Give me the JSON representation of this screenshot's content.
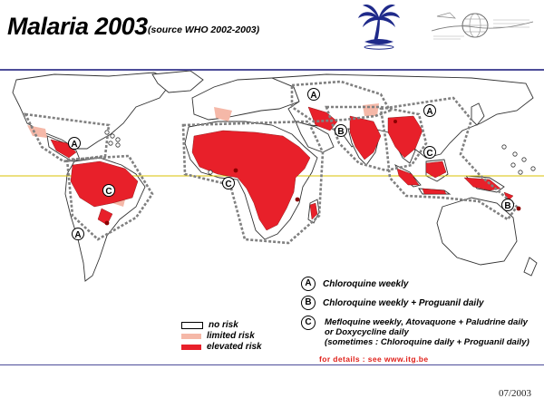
{
  "slide": {
    "title": "Malaria 2003",
    "subtitle": "(source WHO 2002-2003)",
    "date": "07/2003",
    "details_note": "for details : see www.itg.be"
  },
  "logos": {
    "palm_logo_icon": "palm-tree-logo",
    "globe_logo_icon": "globe-ship-logo"
  },
  "legend": {
    "regimens": [
      {
        "letter": "A",
        "label": "Chloroquine weekly"
      },
      {
        "letter": "B",
        "label": "Chloroquine weekly + Proguanil daily"
      },
      {
        "letter": "C",
        "lines": [
          "Mefloquine weekly, Atovaquone + Paludrine daily",
          "or Doxycycline daily",
          "(sometimes : Chloroquine daily + Proguanil daily)"
        ]
      }
    ],
    "risk_levels": [
      {
        "label": "no risk",
        "color": "#ffffff"
      },
      {
        "label": "limited risk",
        "color": "#f5b8a8"
      },
      {
        "label": "elevated risk",
        "color": "#e8202a"
      }
    ]
  },
  "map": {
    "zone_labels": [
      "A",
      "C",
      "A",
      "C",
      "A",
      "B",
      "A",
      "C",
      "B"
    ],
    "colors": {
      "land_outline": "#333333",
      "elevated": "#e8202a",
      "limited": "#f5b8a8",
      "zone_border": "#808080",
      "equator": "#d8c200",
      "rule": "#4d4d99"
    }
  }
}
